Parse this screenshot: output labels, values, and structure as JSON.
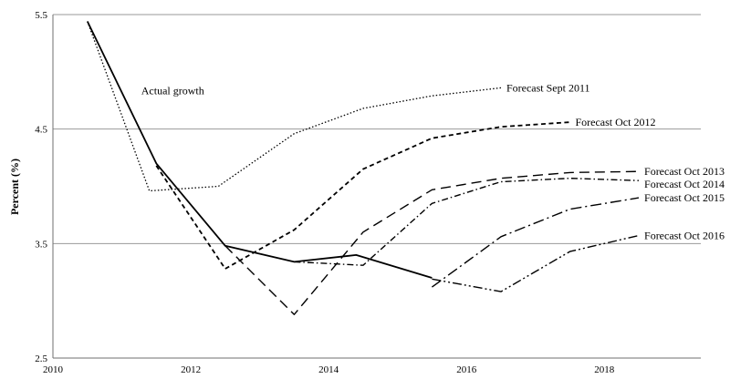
{
  "chart_data": {
    "type": "line",
    "title": "",
    "xlabel": "",
    "ylabel": "Percent (%)",
    "xlim": [
      2010,
      2019.4
    ],
    "ylim": [
      2.5,
      5.5
    ],
    "x_ticks": [
      "2010",
      "2012",
      "2014",
      "2016",
      "2018"
    ],
    "y_ticks": [
      "2.5",
      "3.5",
      "4.5",
      "5.5"
    ],
    "grid": "horizontal",
    "legend": "none (series labelled inline at line ends)",
    "series": [
      {
        "name": "Actual growth",
        "style": "solid",
        "label_position": "upper-left",
        "x": [
          2010.5,
          2011.5,
          2012.5,
          2013.5,
          2014.4,
          2015.5
        ],
        "y": [
          5.44,
          4.2,
          3.48,
          3.34,
          3.4,
          3.2
        ]
      },
      {
        "name": "Forecast Sept 2011",
        "style": "dotted",
        "label_position": "end",
        "x": [
          2010.5,
          2011.4,
          2012.4,
          2013.5,
          2014.5,
          2015.5,
          2016.5
        ],
        "y": [
          5.44,
          3.96,
          4.0,
          4.46,
          4.68,
          4.79,
          4.86
        ]
      },
      {
        "name": "Forecast Oct 2012",
        "style": "dashed",
        "label_position": "end",
        "x": [
          2011.5,
          2012.5,
          2013.5,
          2014.5,
          2015.5,
          2016.5,
          2017.5
        ],
        "y": [
          4.18,
          3.28,
          3.62,
          4.15,
          4.42,
          4.52,
          4.56
        ]
      },
      {
        "name": "Forecast Oct 2013",
        "style": "long-dash",
        "label_position": "end",
        "x": [
          2012.5,
          2013.5,
          2014.5,
          2015.5,
          2016.5,
          2017.5,
          2018.5
        ],
        "y": [
          3.48,
          2.88,
          3.6,
          3.97,
          4.07,
          4.12,
          4.13
        ]
      },
      {
        "name": "Forecast Oct 2014",
        "style": "dash-dot",
        "label_position": "end",
        "x": [
          2013.5,
          2014.5,
          2015.5,
          2016.5,
          2017.5,
          2018.5
        ],
        "y": [
          3.34,
          3.31,
          3.85,
          4.04,
          4.07,
          4.05
        ]
      },
      {
        "name": "Forecast Oct 2015",
        "style": "long-dash-dot",
        "label_position": "end",
        "x": [
          2015.5,
          2016.5,
          2017.5,
          2018.5
        ],
        "y": [
          3.12,
          3.56,
          3.8,
          3.9
        ]
      },
      {
        "name": "Forecast Oct 2016",
        "style": "dash-dot-dot",
        "label_position": "end",
        "x": [
          2015.5,
          2016.5,
          2017.5,
          2018.5
        ],
        "y": [
          3.19,
          3.08,
          3.43,
          3.57
        ]
      }
    ]
  }
}
